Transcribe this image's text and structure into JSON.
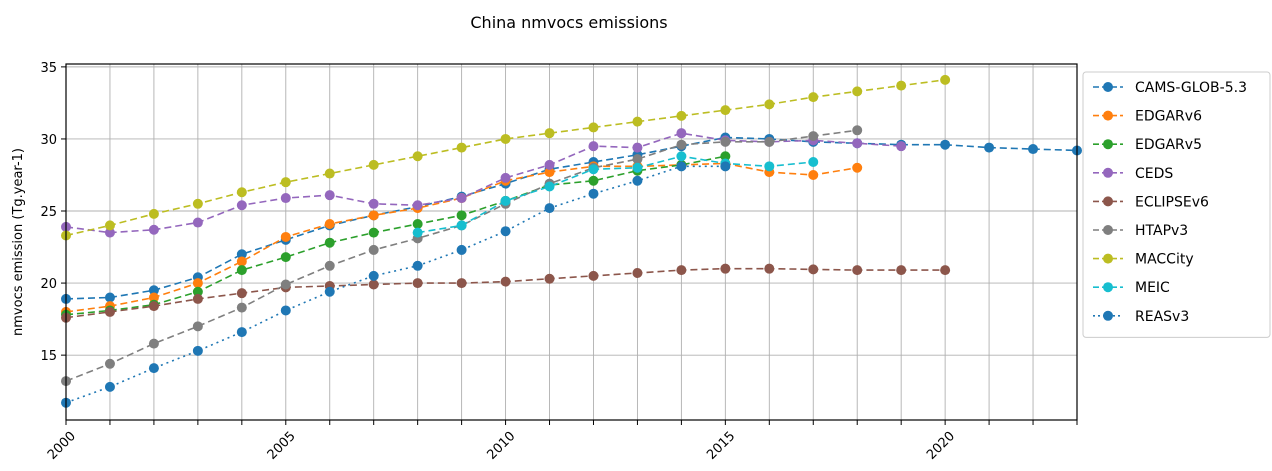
{
  "chart_data": {
    "type": "line",
    "title": "China nmvocs emissions",
    "xlabel": "",
    "ylabel": "nmvocs emission (Tg.year-1)",
    "xlim": [
      2000,
      2023
    ],
    "ylim": [
      10.5,
      35.2
    ],
    "xticks": [
      2000,
      2005,
      2010,
      2015,
      2020
    ],
    "yticks": [
      15,
      20,
      25,
      30,
      35
    ],
    "grid": true,
    "legend": "outside-right",
    "series": [
      {
        "name": "CAMS-GLOB-5.3",
        "color": "#1f77b4",
        "dash": "dashed",
        "x": [
          2000,
          2001,
          2002,
          2003,
          2004,
          2005,
          2006,
          2007,
          2008,
          2009,
          2010,
          2011,
          2012,
          2013,
          2014,
          2015,
          2016,
          2017,
          2018,
          2019,
          2020,
          2021,
          2022,
          2023
        ],
        "y": [
          18.9,
          19.0,
          19.5,
          20.4,
          22.0,
          23.0,
          24.0,
          24.7,
          25.3,
          26.0,
          26.9,
          27.9,
          28.4,
          28.9,
          29.5,
          30.1,
          30.0,
          29.8,
          29.7,
          29.6,
          29.6,
          29.4,
          29.3,
          29.2
        ]
      },
      {
        "name": "EDGARv6",
        "color": "#ff7f0e",
        "dash": "dashed",
        "x": [
          2000,
          2001,
          2002,
          2003,
          2004,
          2005,
          2006,
          2007,
          2008,
          2009,
          2010,
          2011,
          2012,
          2013,
          2014,
          2015,
          2016,
          2017,
          2018
        ],
        "y": [
          18.0,
          18.4,
          19.0,
          20.0,
          21.5,
          23.2,
          24.1,
          24.7,
          25.2,
          25.9,
          27.1,
          27.7,
          28.1,
          28.1,
          28.2,
          28.3,
          27.7,
          27.5,
          28.0
        ]
      },
      {
        "name": "EDGARv5",
        "color": "#2ca02c",
        "dash": "dashed",
        "x": [
          2000,
          2001,
          2002,
          2003,
          2004,
          2005,
          2006,
          2007,
          2008,
          2009,
          2010,
          2011,
          2012,
          2013,
          2014,
          2015
        ],
        "y": [
          17.8,
          18.1,
          18.5,
          19.4,
          20.9,
          21.8,
          22.8,
          23.5,
          24.1,
          24.7,
          25.7,
          26.8,
          27.1,
          27.8,
          28.2,
          28.8
        ]
      },
      {
        "name": "CEDS",
        "color": "#9467bd",
        "dash": "dashed",
        "x": [
          2000,
          2001,
          2002,
          2003,
          2004,
          2005,
          2006,
          2007,
          2008,
          2009,
          2010,
          2011,
          2012,
          2013,
          2014,
          2015,
          2016,
          2017,
          2018,
          2019
        ],
        "y": [
          23.9,
          23.5,
          23.7,
          24.2,
          25.4,
          25.9,
          26.1,
          25.5,
          25.4,
          25.9,
          27.3,
          28.2,
          29.5,
          29.4,
          30.4,
          29.9,
          29.8,
          29.9,
          29.7,
          29.5
        ]
      },
      {
        "name": "ECLIPSEv6",
        "color": "#8c564b",
        "dash": "dashed",
        "x": [
          2000,
          2001,
          2002,
          2003,
          2004,
          2005,
          2006,
          2007,
          2008,
          2009,
          2010,
          2011,
          2012,
          2013,
          2014,
          2015,
          2016,
          2017,
          2018,
          2019,
          2020
        ],
        "y": [
          17.6,
          18.0,
          18.4,
          18.9,
          19.3,
          19.7,
          19.8,
          19.9,
          20.0,
          20.0,
          20.1,
          20.3,
          20.5,
          20.7,
          20.9,
          21.0,
          21.0,
          20.95,
          20.9,
          20.9,
          20.9
        ]
      },
      {
        "name": "HTAPv3",
        "color": "#7f7f7f",
        "dash": "dashed",
        "x": [
          2000,
          2001,
          2002,
          2003,
          2004,
          2005,
          2006,
          2007,
          2008,
          2009,
          2010,
          2011,
          2012,
          2013,
          2014,
          2015,
          2016,
          2017,
          2018
        ],
        "y": [
          13.2,
          14.4,
          15.8,
          17.0,
          18.3,
          19.9,
          21.2,
          22.3,
          23.1,
          24.0,
          25.5,
          26.9,
          28.0,
          28.6,
          29.6,
          29.8,
          29.8,
          30.2,
          30.6
        ]
      },
      {
        "name": "MACCity",
        "color": "#bcbd22",
        "dash": "dashed",
        "x": [
          2000,
          2001,
          2002,
          2003,
          2004,
          2005,
          2006,
          2007,
          2008,
          2009,
          2010,
          2011,
          2012,
          2013,
          2014,
          2015,
          2016,
          2017,
          2018,
          2019,
          2020
        ],
        "y": [
          23.3,
          24.0,
          24.8,
          25.5,
          26.3,
          27.0,
          27.6,
          28.2,
          28.8,
          29.4,
          30.0,
          30.4,
          30.8,
          31.2,
          31.6,
          32.0,
          32.4,
          32.9,
          33.3,
          33.7,
          34.1
        ]
      },
      {
        "name": "MEIC",
        "color": "#17becf",
        "dash": "dashed",
        "x": [
          2008,
          2009,
          2010,
          2011,
          2012,
          2013,
          2014,
          2015,
          2016,
          2017
        ],
        "y": [
          23.5,
          24.0,
          25.7,
          26.7,
          27.9,
          28.0,
          28.8,
          28.3,
          28.1,
          28.4
        ]
      },
      {
        "name": "REASv3",
        "color": "#1f77b4",
        "dash": "dotted",
        "x": [
          2000,
          2001,
          2002,
          2003,
          2004,
          2005,
          2006,
          2007,
          2008,
          2009,
          2010,
          2011,
          2012,
          2013,
          2014,
          2015
        ],
        "y": [
          11.7,
          12.8,
          14.1,
          15.3,
          16.6,
          18.1,
          19.4,
          20.5,
          21.2,
          22.3,
          23.6,
          25.2,
          26.2,
          27.1,
          28.1,
          28.1
        ]
      }
    ]
  }
}
